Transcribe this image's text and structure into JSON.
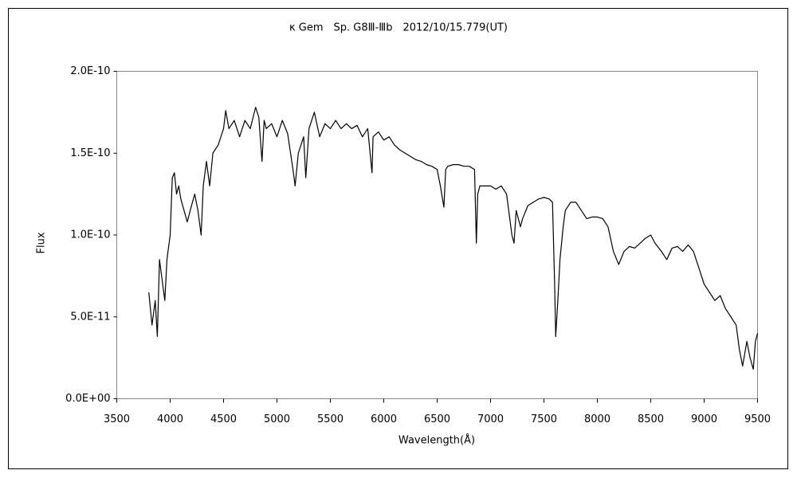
{
  "chart_data": {
    "type": "line",
    "title": "κ Gem　Sp. G8Ⅲ-Ⅲb　2012/10/15.779(UT)",
    "x_label": "Wavelength(Å)",
    "y_label": "Flux",
    "xlim": [
      3500,
      9500
    ],
    "xticks": [
      3500,
      4000,
      4500,
      5000,
      5500,
      6000,
      6500,
      7000,
      7500,
      8000,
      8500,
      9000,
      9500
    ],
    "ylim": [
      0,
      2e-10
    ],
    "yticks": [
      {
        "value": 0,
        "label": "0.0E+00"
      },
      {
        "value": 5e-11,
        "label": "5.0E-11"
      },
      {
        "value": 1e-10,
        "label": "1.0E-10"
      },
      {
        "value": 1.5e-10,
        "label": "1.5E-10"
      },
      {
        "value": 2e-10,
        "label": "2.0E-10"
      }
    ],
    "grid": false,
    "x": [
      3800,
      3830,
      3860,
      3880,
      3900,
      3930,
      3950,
      3970,
      4000,
      4020,
      4040,
      4060,
      4080,
      4100,
      4130,
      4160,
      4200,
      4230,
      4260,
      4290,
      4310,
      4340,
      4370,
      4400,
      4450,
      4500,
      4520,
      4550,
      4600,
      4650,
      4700,
      4750,
      4800,
      4830,
      4860,
      4880,
      4900,
      4950,
      5000,
      5050,
      5100,
      5150,
      5170,
      5200,
      5250,
      5270,
      5300,
      5350,
      5400,
      5450,
      5500,
      5550,
      5600,
      5650,
      5700,
      5750,
      5800,
      5850,
      5890,
      5900,
      5950,
      6000,
      6050,
      6100,
      6150,
      6200,
      6250,
      6300,
      6350,
      6400,
      6450,
      6500,
      6530,
      6563,
      6580,
      6600,
      6650,
      6700,
      6750,
      6800,
      6850,
      6867,
      6880,
      6900,
      6950,
      7000,
      7050,
      7100,
      7150,
      7180,
      7200,
      7220,
      7240,
      7280,
      7300,
      7350,
      7400,
      7450,
      7500,
      7550,
      7580,
      7600,
      7610,
      7630,
      7650,
      7680,
      7700,
      7750,
      7800,
      7850,
      7900,
      7950,
      8000,
      8050,
      8100,
      8150,
      8200,
      8250,
      8300,
      8350,
      8400,
      8450,
      8500,
      8540,
      8600,
      8650,
      8700,
      8750,
      8800,
      8850,
      8900,
      8950,
      9000,
      9050,
      9100,
      9150,
      9200,
      9250,
      9300,
      9330,
      9360,
      9400,
      9430,
      9460,
      9480,
      9500
    ],
    "series": [
      {
        "name": "Flux",
        "color": "#000000",
        "values": [
          6.5e-11,
          4.5e-11,
          6e-11,
          3.8e-11,
          8.5e-11,
          7e-11,
          6e-11,
          8.5e-11,
          1e-10,
          1.35e-10,
          1.38e-10,
          1.25e-10,
          1.3e-10,
          1.22e-10,
          1.15e-10,
          1.08e-10,
          1.18e-10,
          1.25e-10,
          1.15e-10,
          1e-10,
          1.3e-10,
          1.45e-10,
          1.3e-10,
          1.5e-10,
          1.55e-10,
          1.65e-10,
          1.76e-10,
          1.65e-10,
          1.7e-10,
          1.6e-10,
          1.7e-10,
          1.65e-10,
          1.78e-10,
          1.72e-10,
          1.45e-10,
          1.7e-10,
          1.65e-10,
          1.68e-10,
          1.6e-10,
          1.7e-10,
          1.62e-10,
          1.4e-10,
          1.3e-10,
          1.5e-10,
          1.6e-10,
          1.35e-10,
          1.65e-10,
          1.75e-10,
          1.6e-10,
          1.68e-10,
          1.65e-10,
          1.7e-10,
          1.65e-10,
          1.68e-10,
          1.65e-10,
          1.67e-10,
          1.6e-10,
          1.65e-10,
          1.38e-10,
          1.6e-10,
          1.63e-10,
          1.58e-10,
          1.6e-10,
          1.55e-10,
          1.52e-10,
          1.5e-10,
          1.48e-10,
          1.46e-10,
          1.45e-10,
          1.43e-10,
          1.42e-10,
          1.4e-10,
          1.3e-10,
          1.17e-10,
          1.4e-10,
          1.42e-10,
          1.43e-10,
          1.43e-10,
          1.42e-10,
          1.42e-10,
          1.4e-10,
          9.5e-11,
          1.25e-10,
          1.3e-10,
          1.3e-10,
          1.3e-10,
          1.28e-10,
          1.3e-10,
          1.25e-10,
          1.1e-10,
          1e-10,
          9.5e-11,
          1.15e-10,
          1.05e-10,
          1.1e-10,
          1.18e-10,
          1.2e-10,
          1.22e-10,
          1.23e-10,
          1.22e-10,
          1.2e-10,
          7e-11,
          3.8e-11,
          6e-11,
          8.5e-11,
          1.05e-10,
          1.15e-10,
          1.2e-10,
          1.2e-10,
          1.15e-10,
          1.1e-10,
          1.11e-10,
          1.11e-10,
          1.1e-10,
          1.05e-10,
          9e-11,
          8.2e-11,
          9e-11,
          9.3e-11,
          9.2e-11,
          9.5e-11,
          9.8e-11,
          1e-10,
          9.5e-11,
          9e-11,
          8.5e-11,
          9.2e-11,
          9.3e-11,
          9e-11,
          9.4e-11,
          9e-11,
          8e-11,
          7e-11,
          6.5e-11,
          6e-11,
          6.3e-11,
          5.5e-11,
          5e-11,
          4.5e-11,
          3e-11,
          2e-11,
          3.5e-11,
          2.5e-11,
          1.8e-11,
          3.5e-11,
          4e-11
        ]
      }
    ]
  }
}
